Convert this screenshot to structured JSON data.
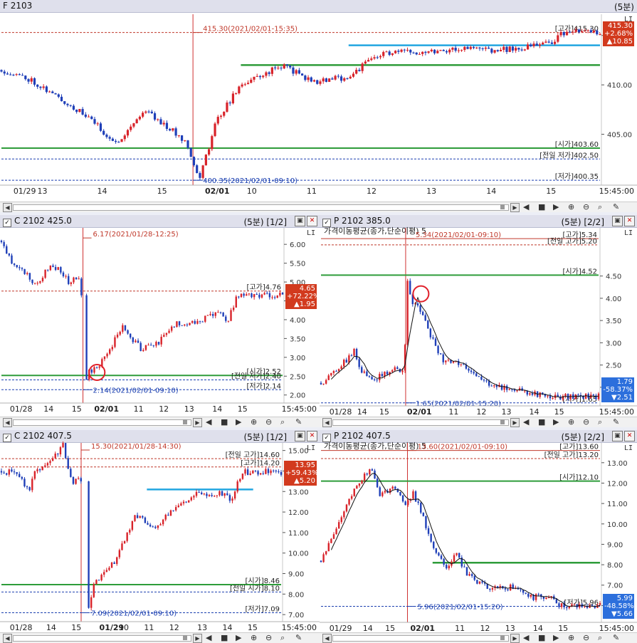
{
  "panels": [
    {
      "id": "p1",
      "title": "F 2103",
      "interval": "(5분)",
      "toolbar_glyph": "LI",
      "badge": {
        "lines": [
          "415.30",
          "+2.68%",
          "▲10.85"
        ],
        "color": "red"
      },
      "time_labels": [
        [
          "01/29",
          0.02
        ],
        [
          "13",
          0.06
        ],
        [
          "14",
          0.16
        ],
        [
          "15",
          0.26
        ],
        [
          "02/01",
          0.34
        ],
        [
          "10",
          0.41
        ],
        [
          "11",
          0.51
        ],
        [
          "12",
          0.61
        ],
        [
          "13",
          0.71
        ],
        [
          "14",
          0.81
        ],
        [
          "15",
          0.91
        ]
      ],
      "time_right": "15:45:00",
      "chart_data": {
        "type": "candlestick",
        "ylim": [
          400.0,
          417.0
        ],
        "yticks": [
          405.0,
          410.0,
          415.0
        ],
        "ytick_labels": [
          "405.00",
          "410.00",
          "415.00"
        ],
        "anchors": [
          [
            0,
            411.5
          ],
          [
            0.05,
            410.5
          ],
          [
            0.15,
            406.5
          ],
          [
            0.19,
            404.0
          ],
          [
            0.24,
            407.5
          ],
          [
            0.31,
            404.2
          ],
          [
            0.33,
            400.35
          ],
          [
            0.36,
            406.5
          ],
          [
            0.4,
            410.0
          ],
          [
            0.47,
            412.0
          ],
          [
            0.52,
            410.3
          ],
          [
            0.58,
            410.8
          ],
          [
            0.62,
            412.7
          ],
          [
            0.64,
            413.2
          ],
          [
            0.7,
            413.4
          ],
          [
            0.78,
            413.7
          ],
          [
            0.83,
            413.5
          ],
          [
            0.88,
            413.8
          ],
          [
            0.92,
            414.4
          ],
          [
            0.94,
            415.3
          ]
        ],
        "ref_lines": [
          {
            "label": "[시가]403.60",
            "value": 403.6,
            "style": "green"
          },
          {
            "label": "[전일 저가]402.50",
            "value": 402.5,
            "style": "blue-dash"
          },
          {
            "label": "[저가]400.35",
            "value": 400.35,
            "style": "blue-dash"
          },
          {
            "label": "[고가]415.30",
            "value": 415.3,
            "style": "red-dash"
          }
        ],
        "annotations": [
          {
            "text": "415.30(2021/02/01-15:35)",
            "value": 415.3,
            "color": "red"
          },
          {
            "text": "400.35(2021/02/01-09:10)",
            "value": 400.35,
            "color": "blue"
          }
        ],
        "trend_lines": [
          {
            "color": "cyan",
            "value": 414.0,
            "x1": 0.58,
            "x2": 1.0
          },
          {
            "color": "green",
            "value": 412.0,
            "x1": 0.4,
            "x2": 1.0
          }
        ],
        "session_line_x": 0.32
      }
    },
    {
      "id": "p2",
      "title": "C 2102 425.0",
      "interval": "(5분) [1/2]",
      "toolbar_glyph": "LI",
      "badge": {
        "lines": [
          "4.65",
          "+72.22%",
          "▲1.95"
        ],
        "color": "red"
      },
      "time_labels": [
        [
          "01/28",
          0.03
        ],
        [
          "14",
          0.15
        ],
        [
          "15",
          0.25
        ],
        [
          "02/01",
          0.33
        ],
        [
          "11",
          0.47
        ],
        [
          "12",
          0.56
        ],
        [
          "13",
          0.65
        ],
        [
          "14",
          0.75
        ],
        [
          "15",
          0.84
        ]
      ],
      "time_right": "15:45:00",
      "chart_data": {
        "type": "candlestick",
        "ylim": [
          1.9,
          6.4
        ],
        "yticks": [
          2.0,
          2.5,
          3.0,
          3.5,
          4.0,
          4.5,
          5.0,
          5.5,
          6.0
        ],
        "ytick_labels": [
          "2.00",
          "2.50",
          "3.00",
          "3.50",
          "4.00",
          "4.50",
          "5.00",
          "5.50",
          "6.00"
        ],
        "anchors": [
          [
            0,
            6.1
          ],
          [
            0.03,
            5.6
          ],
          [
            0.09,
            5.2
          ],
          [
            0.12,
            4.9
          ],
          [
            0.18,
            5.5
          ],
          [
            0.24,
            5.0
          ],
          [
            0.28,
            5.1
          ],
          [
            0.305,
            2.14
          ],
          [
            0.31,
            2.6
          ],
          [
            0.36,
            2.9
          ],
          [
            0.43,
            3.8
          ],
          [
            0.5,
            3.2
          ],
          [
            0.56,
            3.4
          ],
          [
            0.62,
            3.9
          ],
          [
            0.7,
            3.95
          ],
          [
            0.78,
            4.2
          ],
          [
            0.8,
            3.9
          ],
          [
            0.84,
            4.65
          ]
        ],
        "gap_x": [
          0.285,
          0.3
        ],
        "ref_lines": [
          {
            "label": "[고가]4.76",
            "value": 4.76,
            "style": "red-dash"
          },
          {
            "label": "[시가]2.52",
            "value": 2.52,
            "style": "green"
          },
          {
            "label": "[전일 저가]2.40",
            "value": 2.4,
            "style": "blue-dash"
          },
          {
            "label": "[저가]2.14",
            "value": 2.14,
            "style": "blue-dash"
          }
        ],
        "annotations": [
          {
            "text": "6.17(2021/01/28-12:25)",
            "value": 6.17,
            "color": "red"
          },
          {
            "text": "2.14(2021/02/01-09:10)",
            "value": 2.14,
            "color": "blue"
          }
        ],
        "circle": {
          "x": 0.34,
          "value": 2.6
        },
        "session_line_x": 0.29
      }
    },
    {
      "id": "p3",
      "title": "P 2102 385.0",
      "interval": "(5분) [2/2]",
      "toolbar_glyph": "LI",
      "subtitle": "가격이동평균(종가,단순이평) 5",
      "badge": {
        "lines": [
          "1.79",
          "-58.37%",
          "▼2.51"
        ],
        "color": "blue"
      },
      "time_labels": [
        [
          "01/28",
          0.03
        ],
        [
          "14",
          0.13
        ],
        [
          "15",
          0.21
        ],
        [
          "02/01",
          0.31
        ],
        [
          "11",
          0.46
        ],
        [
          "12",
          0.56
        ],
        [
          "13",
          0.65
        ],
        [
          "14",
          0.75
        ],
        [
          "15",
          0.84
        ]
      ],
      "time_right": "15:45:00",
      "chart_data": {
        "type": "candlestick",
        "ylim": [
          1.55,
          5.55
        ],
        "yticks": [
          2.0,
          2.5,
          3.0,
          3.5,
          4.0,
          4.5
        ],
        "ytick_labels": [
          "2.00",
          "2.50",
          "3.00",
          "3.50",
          "4.00",
          "4.50"
        ],
        "anchors": [
          [
            0,
            2.1
          ],
          [
            0.06,
            2.4
          ],
          [
            0.12,
            2.8
          ],
          [
            0.15,
            2.3
          ],
          [
            0.2,
            2.2
          ],
          [
            0.26,
            2.4
          ],
          [
            0.3,
            2.4
          ],
          [
            0.31,
            4.4
          ],
          [
            0.33,
            3.9
          ],
          [
            0.36,
            3.7
          ],
          [
            0.4,
            3.1
          ],
          [
            0.44,
            2.6
          ],
          [
            0.5,
            2.5
          ],
          [
            0.54,
            2.4
          ],
          [
            0.62,
            2.0
          ],
          [
            0.7,
            1.95
          ],
          [
            0.78,
            1.85
          ],
          [
            0.84,
            1.79
          ]
        ],
        "ref_lines": [
          {
            "label": "[고가]5.34",
            "value": 5.34,
            "style": "red"
          },
          {
            "label": "[전일 고가]5.20",
            "value": 5.2,
            "style": "red-dash"
          },
          {
            "label": "[시가]4.52",
            "value": 4.52,
            "style": "green"
          },
          {
            "label": "[저가]1.65",
            "value": 1.65,
            "style": "blue-dash"
          }
        ],
        "annotations": [
          {
            "text": "5.34(2021/02/01-09:10)",
            "value": 5.34,
            "color": "red"
          },
          {
            "text": "1.65(2021/02/01-15:20)",
            "value": 1.65,
            "color": "blue"
          }
        ],
        "circle": {
          "x": 0.36,
          "value": 4.1
        },
        "moving_average": true,
        "session_line_x": 0.305
      }
    },
    {
      "id": "p4",
      "title": "C 2102 407.5",
      "interval": "(5분) [1/2]",
      "toolbar_glyph": "LI",
      "badge": {
        "lines": [
          "13.95",
          "+59.43%",
          "▲5.20"
        ],
        "color": "red"
      },
      "time_labels": [
        [
          "01/28",
          0.03
        ],
        [
          "14",
          0.16
        ],
        [
          "15",
          0.25
        ],
        [
          "01/29",
          0.35
        ],
        [
          "10",
          0.42
        ],
        [
          "11",
          0.51
        ],
        [
          "12",
          0.6
        ],
        [
          "13",
          0.7
        ],
        [
          "14",
          0.79
        ],
        [
          "15",
          0.88
        ]
      ],
      "time_right": "15:45:00",
      "chart_data": {
        "type": "candlestick",
        "ylim": [
          6.9,
          15.3
        ],
        "yticks": [
          7.0,
          8.0,
          9.0,
          10.0,
          11.0,
          12.0,
          13.0,
          14.0,
          15.0
        ],
        "ytick_labels": [
          "7.00",
          "8.00",
          "9.00",
          "10.00",
          "11.00",
          "12.00",
          "13.00",
          "14.00",
          "15.00"
        ],
        "anchors": [
          [
            0,
            14.0
          ],
          [
            0.05,
            13.9
          ],
          [
            0.1,
            13.1
          ],
          [
            0.12,
            14.0
          ],
          [
            0.18,
            14.5
          ],
          [
            0.22,
            15.3
          ],
          [
            0.25,
            13.5
          ],
          [
            0.3,
            13.6
          ],
          [
            0.31,
            7.09
          ],
          [
            0.33,
            8.5
          ],
          [
            0.4,
            9.5
          ],
          [
            0.48,
            11.8
          ],
          [
            0.55,
            11.2
          ],
          [
            0.62,
            12.2
          ],
          [
            0.7,
            12.9
          ],
          [
            0.78,
            12.9
          ],
          [
            0.82,
            12.6
          ],
          [
            0.86,
            13.95
          ]
        ],
        "gap_x": [
          0.29,
          0.305
        ],
        "ref_lines": [
          {
            "label": "[전일 고가]14.60",
            "value": 14.6,
            "style": "red-dash"
          },
          {
            "label": "[고가]14.20",
            "value": 14.2,
            "style": "red-dash"
          },
          {
            "label": "[시가]8.46",
            "value": 8.46,
            "style": "green"
          },
          {
            "label": "[전일 시가]8.10",
            "value": 8.1,
            "style": "blue-dash"
          },
          {
            "label": "[저가]7.09",
            "value": 7.09,
            "style": "blue-dash"
          }
        ],
        "annotations": [
          {
            "text": "15.30(2021/01/28-14:30)",
            "value": 15.3,
            "color": "red"
          },
          {
            "text": "7.09(2021/02/01-09:10)",
            "value": 7.09,
            "color": "blue"
          }
        ],
        "trend_lines": [
          {
            "color": "cyan",
            "value": 13.1,
            "x1": 0.52,
            "x2": 0.9
          }
        ],
        "session_line_x": 0.285
      }
    },
    {
      "id": "p5",
      "title": "P 2102 407.5",
      "interval": "(5분) [2/2]",
      "toolbar_glyph": "LI",
      "subtitle": "가격이동평균(종가,단순이평) 5",
      "badge": {
        "lines": [
          "5.99",
          "-48.58%",
          "▼5.66"
        ],
        "color": "blue"
      },
      "time_labels": [
        [
          "01/29",
          0.03
        ],
        [
          "14",
          0.15
        ],
        [
          "15",
          0.23
        ],
        [
          "02/01",
          0.32
        ],
        [
          "11",
          0.48
        ],
        [
          "12",
          0.57
        ],
        [
          "13",
          0.66
        ],
        [
          "14",
          0.76
        ],
        [
          "15",
          0.85
        ]
      ],
      "time_right": "15:45:00",
      "chart_data": {
        "type": "candlestick",
        "ylim": [
          5.7,
          13.9
        ],
        "yticks": [
          6.0,
          7.0,
          8.0,
          9.0,
          10.0,
          11.0,
          12.0,
          13.0
        ],
        "ytick_labels": [
          "6.00",
          "7.00",
          "8.00",
          "9.00",
          "10.00",
          "11.00",
          "12.00",
          "13.00"
        ],
        "anchors": [
          [
            0,
            8.2
          ],
          [
            0.06,
            10.0
          ],
          [
            0.12,
            11.8
          ],
          [
            0.18,
            12.8
          ],
          [
            0.21,
            11.3
          ],
          [
            0.26,
            11.8
          ],
          [
            0.3,
            11.0
          ],
          [
            0.33,
            11.5
          ],
          [
            0.36,
            10.6
          ],
          [
            0.4,
            8.8
          ],
          [
            0.45,
            7.8
          ],
          [
            0.48,
            8.6
          ],
          [
            0.52,
            7.6
          ],
          [
            0.6,
            6.8
          ],
          [
            0.68,
            6.9
          ],
          [
            0.76,
            6.4
          ],
          [
            0.82,
            6.5
          ],
          [
            0.85,
            5.99
          ]
        ],
        "ref_lines": [
          {
            "label": "[고가]13.60",
            "value": 13.6,
            "style": "red"
          },
          {
            "label": "[전일 고가]13.20",
            "value": 13.2,
            "style": "red-dash"
          },
          {
            "label": "[시가]12.10",
            "value": 12.1,
            "style": "green"
          },
          {
            "label": "[저가]5.96",
            "value": 5.96,
            "style": "blue-dash"
          }
        ],
        "annotations": [
          {
            "text": "13.60(2021/02/01-09:10)",
            "value": 13.6,
            "color": "red"
          },
          {
            "text": "5.96(2021/02/01-15:20)",
            "value": 5.96,
            "color": "blue"
          }
        ],
        "trend_lines": [
          {
            "color": "green",
            "value": 8.1,
            "x1": 0.4,
            "x2": 1.0
          }
        ],
        "moving_average": true,
        "session_line_x": 0.31
      }
    }
  ]
}
